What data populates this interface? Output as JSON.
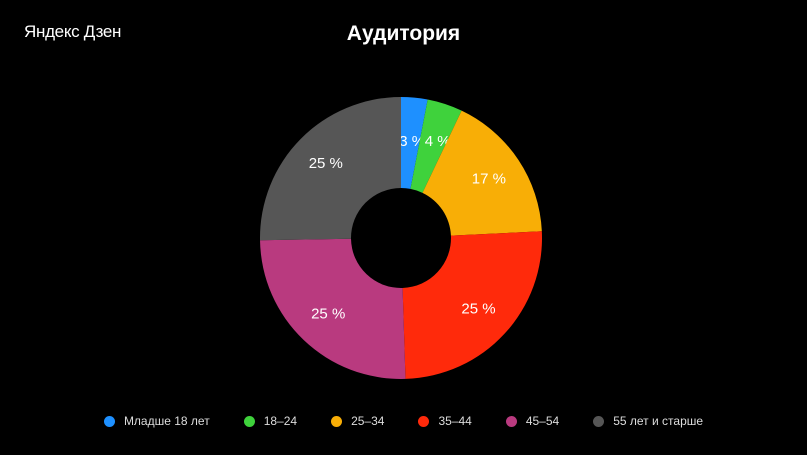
{
  "header": {
    "logo": "Яндекс Дзен"
  },
  "chart_data": {
    "type": "pie",
    "variant": "donut",
    "title": "Аудитория",
    "categories": [
      "Младше 18 лет",
      "18–24",
      "25–34",
      "35–44",
      "45–54",
      "55 лет и старше"
    ],
    "values": [
      3,
      4,
      17,
      25,
      25,
      25
    ],
    "labels": [
      "3 %",
      "4 %",
      "17 %",
      "25 %",
      "25 %",
      "25 %"
    ],
    "colors": [
      "#1E90FF",
      "#3FD23C",
      "#F8AE06",
      "#FF2A0B",
      "#B93A7F",
      "#565656"
    ],
    "legend": "bottom"
  }
}
